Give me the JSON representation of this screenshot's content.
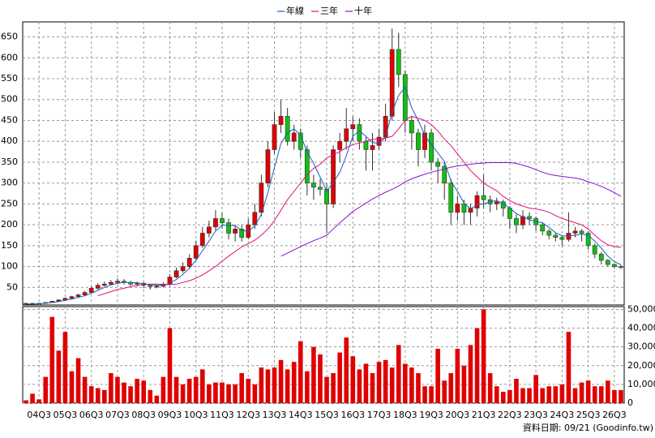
{
  "chart_data": {
    "type": "candlestick",
    "legend": [
      {
        "name": "年線",
        "color": "#1a5fc0"
      },
      {
        "name": "三年",
        "color": "#e0107a"
      },
      {
        "name": "十年",
        "color": "#8a10d0"
      }
    ],
    "categories": [
      null,
      null,
      "04Q3",
      null,
      null,
      null,
      "05Q3",
      null,
      null,
      null,
      "06Q3",
      null,
      null,
      null,
      "07Q3",
      null,
      null,
      null,
      "08Q3",
      null,
      null,
      null,
      "09Q3",
      null,
      null,
      null,
      "10Q3",
      null,
      null,
      null,
      "11Q3",
      null,
      null,
      null,
      "12Q3",
      null,
      null,
      null,
      "13Q3",
      null,
      null,
      null,
      "14Q3",
      null,
      null,
      null,
      "15Q3",
      null,
      null,
      null,
      "16Q3",
      null,
      null,
      null,
      "17Q3",
      null,
      null,
      null,
      "18Q3",
      null,
      null,
      null,
      "19Q3",
      null,
      null,
      null,
      "20Q3",
      null,
      null,
      null,
      "21Q3",
      null,
      null,
      null,
      "22Q3",
      null,
      null,
      null,
      "23Q3",
      null,
      null,
      null,
      "24Q3",
      null,
      null,
      null,
      "25Q3",
      null,
      null,
      null,
      "26Q3",
      null
    ],
    "open": [
      11,
      12,
      11,
      12,
      14,
      17,
      20,
      24,
      28,
      32,
      38,
      48,
      55,
      58,
      62,
      65,
      62,
      58,
      60,
      55,
      52,
      53,
      58,
      75,
      90,
      100,
      120,
      150,
      180,
      195,
      215,
      205,
      180,
      190,
      170,
      200,
      230,
      300,
      380,
      440,
      460,
      400,
      420,
      380,
      300,
      290,
      285,
      250,
      380,
      400,
      430,
      440,
      400,
      380,
      390,
      410,
      460,
      620,
      560,
      450,
      420,
      380,
      420,
      350,
      340,
      300,
      230,
      250,
      230,
      240,
      270,
      260,
      250,
      255,
      240,
      215,
      200,
      220,
      215,
      200,
      185,
      175,
      170,
      165,
      180,
      185,
      180,
      150,
      130,
      115,
      105,
      100
    ],
    "high": [
      13,
      13,
      13,
      15,
      18,
      22,
      26,
      30,
      35,
      42,
      52,
      60,
      64,
      68,
      72,
      70,
      66,
      64,
      63,
      58,
      58,
      62,
      82,
      98,
      110,
      130,
      162,
      195,
      210,
      235,
      230,
      215,
      200,
      200,
      215,
      250,
      320,
      400,
      470,
      500,
      480,
      440,
      430,
      390,
      320,
      310,
      300,
      390,
      420,
      480,
      460,
      455,
      410,
      420,
      430,
      490,
      670,
      660,
      570,
      460,
      430,
      440,
      430,
      360,
      350,
      310,
      270,
      260,
      250,
      280,
      320,
      270,
      265,
      260,
      245,
      225,
      235,
      230,
      220,
      205,
      190,
      180,
      175,
      230,
      195,
      190,
      185,
      155,
      135,
      118,
      108,
      104
    ],
    "low": [
      10,
      10,
      10,
      11,
      13,
      16,
      19,
      22,
      26,
      30,
      36,
      45,
      52,
      55,
      58,
      57,
      54,
      52,
      48,
      45,
      48,
      50,
      55,
      72,
      85,
      95,
      115,
      145,
      170,
      185,
      190,
      165,
      160,
      160,
      165,
      190,
      220,
      290,
      370,
      420,
      390,
      380,
      360,
      270,
      260,
      270,
      180,
      240,
      350,
      380,
      400,
      380,
      330,
      330,
      380,
      400,
      450,
      530,
      420,
      380,
      340,
      360,
      330,
      300,
      260,
      200,
      210,
      200,
      200,
      220,
      240,
      230,
      235,
      220,
      190,
      180,
      190,
      200,
      185,
      175,
      165,
      160,
      150,
      160,
      170,
      160,
      140,
      120,
      105,
      100,
      95,
      94
    ],
    "close": [
      12,
      11,
      12,
      14,
      17,
      20,
      24,
      28,
      32,
      38,
      48,
      55,
      58,
      62,
      65,
      62,
      58,
      60,
      55,
      52,
      53,
      58,
      75,
      90,
      100,
      120,
      150,
      180,
      195,
      215,
      205,
      180,
      190,
      170,
      200,
      230,
      300,
      380,
      440,
      460,
      400,
      420,
      380,
      300,
      290,
      285,
      250,
      380,
      400,
      430,
      440,
      400,
      380,
      390,
      410,
      460,
      620,
      560,
      450,
      420,
      380,
      420,
      350,
      340,
      300,
      230,
      250,
      230,
      240,
      270,
      260,
      250,
      255,
      240,
      215,
      200,
      220,
      215,
      200,
      185,
      175,
      170,
      165,
      180,
      185,
      180,
      150,
      130,
      115,
      105,
      100,
      98
    ],
    "up_color": "#e00000",
    "down_color": "#10c010",
    "series": [
      {
        "name": "年線",
        "color": "#1a5fc0",
        "values": [
          10,
          10,
          11,
          12,
          14,
          16,
          19,
          22,
          26,
          30,
          36,
          43,
          50,
          56,
          60,
          62,
          62,
          61,
          59,
          56,
          55,
          55,
          60,
          69,
          81,
          96,
          115,
          138,
          161,
          185,
          199,
          199,
          198,
          186,
          185,
          197,
          225,
          277,
          337,
          395,
          420,
          430,
          415,
          375,
          347,
          314,
          281,
          301,
          326,
          365,
          412,
          425,
          412,
          397,
          395,
          410,
          470,
          510,
          530,
          480,
          450,
          415,
          392,
          372,
          352,
          305,
          280,
          252,
          238,
          248,
          250,
          255,
          258,
          251,
          240,
          227,
          219,
          212,
          208,
          205,
          194,
          181,
          174,
          173,
          175,
          178,
          175,
          161,
          144,
          125,
          112,
          104
        ]
      },
      {
        "name": "三年",
        "color": "#e0107a",
        "values": [
          null,
          null,
          null,
          null,
          null,
          null,
          null,
          null,
          null,
          null,
          null,
          30,
          35,
          40,
          45,
          48,
          52,
          55,
          57,
          58,
          58,
          57,
          57,
          58,
          62,
          66,
          72,
          80,
          90,
          100,
          113,
          125,
          136,
          147,
          155,
          163,
          175,
          190,
          210,
          235,
          260,
          280,
          300,
          320,
          335,
          345,
          360,
          368,
          375,
          385,
          392,
          396,
          400,
          405,
          405,
          408,
          412,
          430,
          450,
          460,
          455,
          450,
          440,
          425,
          405,
          390,
          370,
          350,
          330,
          315,
          300,
          290,
          282,
          268,
          258,
          250,
          245,
          240,
          238,
          235,
          230,
          222,
          215,
          210,
          205,
          200,
          190,
          175,
          162,
          152,
          148,
          146
        ]
      },
      {
        "name": "十年",
        "color": "#8a10d0",
        "values": [
          null,
          null,
          null,
          null,
          null,
          null,
          null,
          null,
          null,
          null,
          null,
          null,
          null,
          null,
          null,
          null,
          null,
          null,
          null,
          null,
          null,
          null,
          null,
          null,
          null,
          null,
          null,
          null,
          null,
          null,
          null,
          null,
          null,
          null,
          null,
          null,
          null,
          null,
          null,
          125,
          132,
          140,
          148,
          155,
          162,
          168,
          175,
          190,
          205,
          218,
          232,
          242,
          252,
          262,
          270,
          278,
          285,
          293,
          303,
          310,
          316,
          321,
          326,
          330,
          334,
          338,
          341,
          343,
          345,
          347,
          348,
          349,
          349,
          349,
          349,
          347,
          343,
          338,
          332,
          326,
          321,
          318,
          316,
          314,
          312,
          309,
          303,
          298,
          292,
          285,
          277,
          268
        ]
      }
    ],
    "ylim": [
      8,
      686
    ],
    "yticks": [
      50,
      100,
      150,
      200,
      250,
      300,
      350,
      400,
      450,
      500,
      550,
      600,
      650
    ],
    "grid": true,
    "volume": {
      "type": "bar",
      "color": "#e00000",
      "values": [
        1500,
        5000,
        2000,
        14000,
        46000,
        28000,
        38000,
        17000,
        24000,
        14000,
        9000,
        8000,
        7000,
        16000,
        14000,
        11000,
        9000,
        13000,
        12000,
        7000,
        4000,
        14000,
        40000,
        14000,
        10000,
        13000,
        14000,
        18000,
        10000,
        11000,
        11000,
        10000,
        10000,
        16000,
        13000,
        10000,
        19000,
        18000,
        19000,
        23000,
        18000,
        22000,
        33000,
        17000,
        30000,
        26000,
        14000,
        16000,
        27000,
        35000,
        25000,
        18000,
        21000,
        16000,
        22000,
        23000,
        19000,
        31000,
        21000,
        19000,
        16000,
        9000,
        9000,
        29000,
        12000,
        16000,
        29000,
        20000,
        31000,
        40000,
        50000,
        16000,
        9000,
        6000,
        7000,
        13000,
        8000,
        8000,
        15000,
        8000,
        9000,
        9000,
        10000,
        38000,
        8000,
        11000,
        12000,
        9000,
        9000,
        12000,
        7000,
        7000
      ],
      "ylim": [
        0,
        51500
      ],
      "yticks": [
        0,
        {
          "value": 10000,
          "label": "10,000"
        },
        {
          "value": 20000,
          "label": "20,000"
        },
        {
          "value": 30000,
          "label": "30,000"
        },
        {
          "value": 40000,
          "label": "40,000"
        },
        {
          "value": 50000,
          "label": "50,000"
        }
      ]
    },
    "footer": "資料日期: 09/21 (Goodinfo.tw)"
  }
}
